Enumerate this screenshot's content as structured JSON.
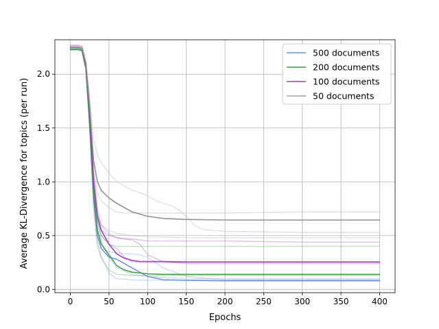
{
  "chart_data": {
    "type": "line",
    "xlabel": "Epochs",
    "ylabel": "Average KL-Divergence for topics (per run)",
    "xlim": [
      -20,
      420
    ],
    "ylim": [
      -0.03,
      2.32
    ],
    "xticks": [
      0,
      50,
      100,
      150,
      200,
      250,
      300,
      350,
      400
    ],
    "xtick_labels": [
      "0",
      "50",
      "100",
      "150",
      "200",
      "250",
      "300",
      "350",
      "400"
    ],
    "yticks": [
      0.0,
      0.5,
      1.0,
      1.5,
      2.0
    ],
    "ytick_labels": [
      "0.0",
      "0.5",
      "1.0",
      "1.5",
      "2.0"
    ],
    "grid": true,
    "legend_position": "top-right",
    "legend": [
      {
        "label": "500 documents",
        "color": "#6a8ee6"
      },
      {
        "label": "200 documents",
        "color": "#3a9e3a"
      },
      {
        "label": "100 documents",
        "color": "#9b3bb5"
      },
      {
        "label": "50 documents",
        "color": "#a0a0a0"
      }
    ],
    "series": [
      {
        "group": "500 documents",
        "role": "run",
        "color": "#6a8ee6",
        "x": [
          0,
          10,
          15,
          20,
          25,
          30,
          35,
          40,
          50,
          60,
          80,
          100,
          150,
          200,
          300,
          400
        ],
        "y": [
          2.23,
          2.23,
          2.22,
          2.05,
          1.5,
          0.75,
          0.4,
          0.3,
          0.15,
          0.1,
          0.09,
          0.085,
          0.085,
          0.085,
          0.085,
          0.085
        ]
      },
      {
        "group": "500 documents",
        "role": "run",
        "color": "#6a8ee6",
        "x": [
          0,
          10,
          15,
          20,
          25,
          30,
          35,
          40,
          50,
          60,
          80,
          100,
          150,
          200,
          300,
          400
        ],
        "y": [
          2.24,
          2.24,
          2.23,
          2.08,
          1.6,
          0.95,
          0.6,
          0.45,
          0.3,
          0.2,
          0.14,
          0.12,
          0.1,
          0.1,
          0.1,
          0.1
        ]
      },
      {
        "group": "500 documents",
        "role": "run",
        "color": "#6a8ee6",
        "x": [
          0,
          10,
          15,
          20,
          25,
          30,
          35,
          40,
          50,
          60,
          70,
          80,
          90,
          100,
          120,
          150,
          200,
          300,
          400
        ],
        "y": [
          2.22,
          2.22,
          2.21,
          2.05,
          1.5,
          0.9,
          0.5,
          0.38,
          0.35,
          0.34,
          0.33,
          0.33,
          0.32,
          0.3,
          0.2,
          0.12,
          0.09,
          0.09,
          0.09
        ]
      },
      {
        "group": "500 documents",
        "role": "mean",
        "color": "#6a8ee6",
        "x": [
          0,
          10,
          15,
          20,
          25,
          30,
          35,
          40,
          50,
          60,
          70,
          80,
          90,
          100,
          120,
          150,
          200,
          300,
          400
        ],
        "y": [
          2.23,
          2.23,
          2.22,
          2.06,
          1.55,
          0.85,
          0.5,
          0.38,
          0.3,
          0.28,
          0.24,
          0.2,
          0.16,
          0.12,
          0.09,
          0.085,
          0.08,
          0.08,
          0.08
        ]
      },
      {
        "group": "200 documents",
        "role": "run",
        "color": "#3a9e3a",
        "x": [
          0,
          10,
          15,
          20,
          25,
          30,
          35,
          40,
          50,
          60,
          80,
          100,
          150,
          200,
          300,
          400
        ],
        "y": [
          2.24,
          2.24,
          2.23,
          2.08,
          1.6,
          1.0,
          0.65,
          0.5,
          0.42,
          0.4,
          0.4,
          0.4,
          0.4,
          0.4,
          0.4,
          0.4
        ]
      },
      {
        "group": "200 documents",
        "role": "run",
        "color": "#3a9e3a",
        "x": [
          0,
          10,
          15,
          20,
          25,
          30,
          35,
          40,
          50,
          60,
          80,
          100,
          150,
          200,
          300,
          400
        ],
        "y": [
          2.23,
          2.23,
          2.22,
          2.05,
          1.5,
          0.8,
          0.45,
          0.3,
          0.18,
          0.14,
          0.13,
          0.13,
          0.13,
          0.13,
          0.13,
          0.13
        ]
      },
      {
        "group": "200 documents",
        "role": "mean",
        "color": "#3a9e3a",
        "x": [
          0,
          10,
          15,
          20,
          25,
          30,
          35,
          40,
          50,
          60,
          70,
          80,
          100,
          120,
          150,
          200,
          300,
          400
        ],
        "y": [
          2.23,
          2.23,
          2.22,
          2.06,
          1.55,
          0.9,
          0.55,
          0.42,
          0.32,
          0.22,
          0.18,
          0.16,
          0.145,
          0.14,
          0.14,
          0.14,
          0.14,
          0.14
        ]
      },
      {
        "group": "100 documents",
        "role": "run",
        "color": "#9b3bb5",
        "x": [
          0,
          10,
          15,
          20,
          25,
          30,
          35,
          40,
          50,
          60,
          70,
          80,
          90,
          100,
          150,
          200,
          300,
          400
        ],
        "y": [
          2.26,
          2.26,
          2.25,
          2.1,
          1.7,
          1.1,
          0.75,
          0.6,
          0.52,
          0.48,
          0.47,
          0.47,
          0.46,
          0.45,
          0.45,
          0.45,
          0.44,
          0.44
        ]
      },
      {
        "group": "100 documents",
        "role": "run",
        "color": "#9b3bb5",
        "x": [
          0,
          10,
          15,
          20,
          25,
          30,
          35,
          40,
          50,
          60,
          70,
          80,
          90,
          100,
          150,
          200,
          300,
          400
        ],
        "y": [
          2.25,
          2.25,
          2.24,
          2.08,
          1.65,
          1.0,
          0.65,
          0.5,
          0.42,
          0.38,
          0.3,
          0.26,
          0.25,
          0.25,
          0.25,
          0.25,
          0.25,
          0.25
        ]
      },
      {
        "group": "100 documents",
        "role": "run",
        "color": "#9b3bb5",
        "x": [
          0,
          10,
          15,
          20,
          25,
          30,
          35,
          40,
          50,
          60,
          70,
          80,
          90,
          100,
          120,
          150,
          200,
          300,
          400
        ],
        "y": [
          2.27,
          2.27,
          2.26,
          2.1,
          1.7,
          1.05,
          0.7,
          0.55,
          0.5,
          0.48,
          0.47,
          0.46,
          0.42,
          0.32,
          0.26,
          0.24,
          0.24,
          0.24,
          0.24
        ]
      },
      {
        "group": "100 documents",
        "role": "mean",
        "color": "#9b3bb5",
        "x": [
          0,
          10,
          15,
          20,
          25,
          30,
          35,
          40,
          50,
          60,
          70,
          80,
          90,
          100,
          120,
          150,
          200,
          300,
          400
        ],
        "y": [
          2.25,
          2.25,
          2.24,
          2.08,
          1.65,
          1.0,
          0.68,
          0.55,
          0.42,
          0.33,
          0.29,
          0.27,
          0.26,
          0.26,
          0.26,
          0.255,
          0.255,
          0.255,
          0.255
        ]
      },
      {
        "group": "50 documents",
        "role": "run",
        "color": "#a0a0a0",
        "x": [
          0,
          10,
          15,
          20,
          25,
          30,
          35,
          40,
          50,
          60,
          70,
          80,
          90,
          100,
          110,
          120,
          130,
          140,
          150,
          160,
          170,
          180,
          200,
          300,
          400
        ],
        "y": [
          2.27,
          2.27,
          2.26,
          2.15,
          1.8,
          1.4,
          1.25,
          1.18,
          1.08,
          1.0,
          0.96,
          0.92,
          0.9,
          0.87,
          0.83,
          0.8,
          0.78,
          0.74,
          0.68,
          0.6,
          0.56,
          0.55,
          0.54,
          0.53,
          0.53
        ]
      },
      {
        "group": "50 documents",
        "role": "run",
        "color": "#a0a0a0",
        "x": [
          0,
          10,
          15,
          20,
          25,
          30,
          35,
          40,
          50,
          60,
          70,
          80,
          100,
          150,
          200,
          300,
          400
        ],
        "y": [
          2.25,
          2.25,
          2.24,
          2.1,
          1.7,
          1.1,
          0.9,
          0.82,
          0.76,
          0.72,
          0.71,
          0.71,
          0.71,
          0.71,
          0.71,
          0.72,
          0.72
        ]
      },
      {
        "group": "50 documents",
        "role": "run",
        "color": "#a0a0a0",
        "x": [
          0,
          10,
          15,
          20,
          25,
          30,
          35,
          40,
          50,
          60,
          80,
          100,
          150,
          200,
          300,
          400
        ],
        "y": [
          2.24,
          2.24,
          2.23,
          2.08,
          1.6,
          0.95,
          0.7,
          0.6,
          0.55,
          0.52,
          0.5,
          0.49,
          0.48,
          0.48,
          0.48,
          0.48
        ]
      },
      {
        "group": "50 documents",
        "role": "mean",
        "color": "#8a8a8a",
        "x": [
          0,
          10,
          15,
          20,
          25,
          30,
          35,
          40,
          50,
          60,
          70,
          80,
          90,
          100,
          120,
          150,
          200,
          300,
          400
        ],
        "y": [
          2.25,
          2.25,
          2.24,
          2.1,
          1.7,
          1.2,
          1.0,
          0.92,
          0.85,
          0.8,
          0.76,
          0.72,
          0.7,
          0.68,
          0.66,
          0.65,
          0.645,
          0.645,
          0.645
        ]
      }
    ]
  }
}
